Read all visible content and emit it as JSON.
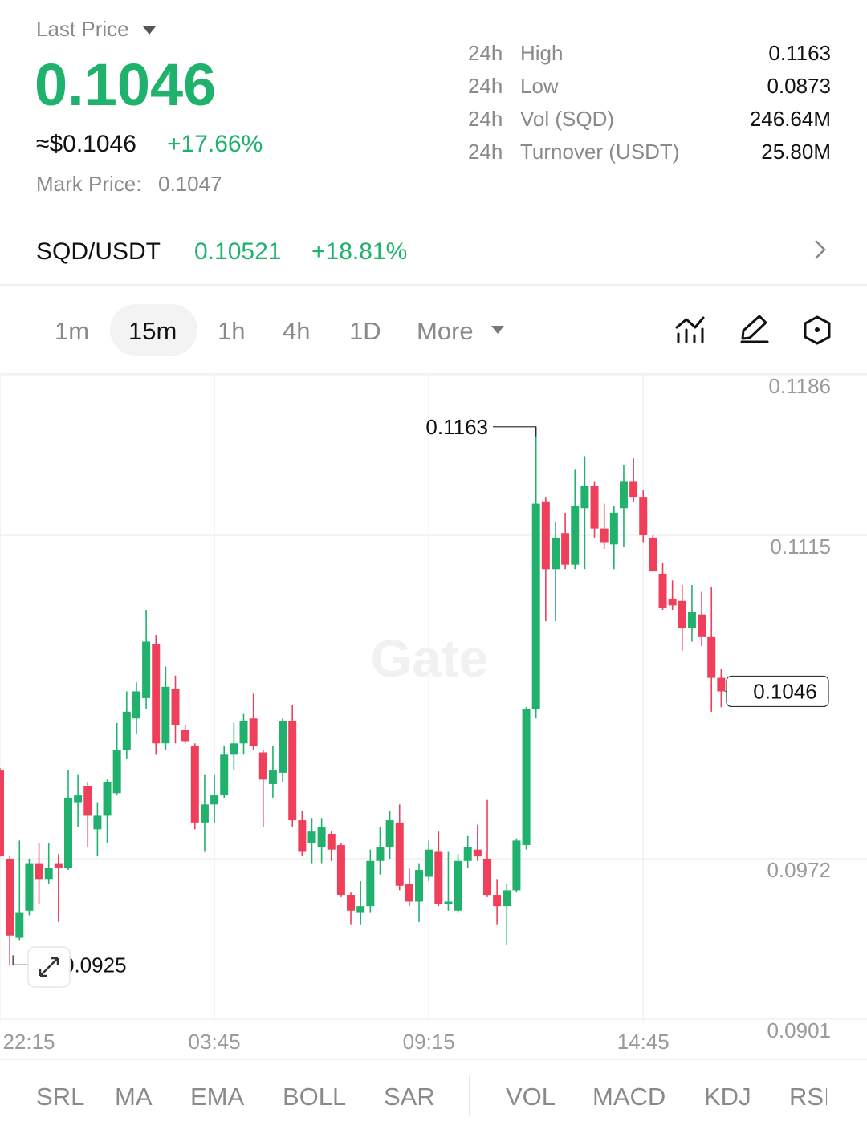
{
  "header": {
    "last_price_label": "Last Price",
    "last_price": "0.1046",
    "usd_price": "≈$0.1046",
    "change_pct": "+17.66%",
    "mark_price_label": "Mark Price:",
    "mark_price": "0.1047",
    "stats": [
      {
        "period": "24h",
        "label": "High",
        "value": "0.1163"
      },
      {
        "period": "24h",
        "label": "Low",
        "value": "0.0873"
      },
      {
        "period": "24h",
        "label": "Vol (SQD)",
        "value": "246.64M"
      },
      {
        "period": "24h",
        "label": "Turnover (USDT)",
        "value": "25.80M"
      }
    ]
  },
  "pair": {
    "symbol": "SQD/USDT",
    "price": "0.10521",
    "change_pct": "+18.81%"
  },
  "timeframes": {
    "options": [
      "1m",
      "15m",
      "1h",
      "4h",
      "1D"
    ],
    "selected": 1,
    "more": "More"
  },
  "watermark": "Gate",
  "chart_data": {
    "type": "candlestick",
    "categories": [
      "22:15",
      null,
      null,
      null,
      null,
      null,
      null,
      null,
      null,
      null,
      null,
      null,
      null,
      null,
      null,
      null,
      null,
      null,
      null,
      null,
      null,
      null,
      "03:45",
      null,
      null,
      null,
      null,
      null,
      null,
      null,
      null,
      null,
      null,
      null,
      null,
      null,
      null,
      null,
      null,
      null,
      null,
      null,
      null,
      null,
      "09:15",
      null,
      null,
      null,
      null,
      null,
      null,
      null,
      null,
      null,
      null,
      null,
      null,
      null,
      null,
      null,
      null,
      null,
      null,
      null,
      null,
      null,
      "14:45",
      null,
      null,
      null,
      null,
      null,
      null,
      null,
      null
    ],
    "open": [
      0.1011,
      0.0972,
      0.0937,
      0.0949,
      0.097,
      0.0963,
      0.097,
      0.0968,
      0.0997,
      0.1004,
      0.0985,
      0.0991,
      0.1001,
      0.102,
      0.1034,
      0.1043,
      0.1067,
      0.1023,
      0.1047,
      0.1029,
      0.1022,
      0.0988,
      0.0996,
      0.1,
      0.1018,
      0.1023,
      0.1034,
      0.1019,
      0.1005,
      0.101,
      0.1033,
      0.0989,
      0.0979,
      0.0977,
      0.0983,
      0.0978,
      0.0956,
      0.0948,
      0.0951,
      0.0971,
      0.0977,
      0.0988,
      0.0961,
      0.0953,
      0.0964,
      0.0975,
      0.0952,
      0.0949,
      0.0971,
      0.0976,
      0.0972,
      0.0956,
      0.0951,
      0.0958,
      0.0978,
      0.1038,
      0.113,
      0.11,
      0.1116,
      0.1102,
      0.1127,
      0.1137,
      0.1118,
      0.1111,
      0.1127,
      0.1139,
      0.1132,
      0.1114,
      0.1098,
      0.1087,
      0.1086,
      0.1074,
      0.108,
      0.107,
      0.1052
    ],
    "high": [
      0.1012,
      0.0973,
      0.098,
      0.0972,
      0.0979,
      0.0979,
      0.0974,
      0.1011,
      0.1009,
      0.1006,
      0.0997,
      0.1007,
      0.1032,
      0.1046,
      0.105,
      0.1082,
      0.1071,
      0.1057,
      0.1053,
      0.1031,
      0.1023,
      0.1009,
      0.1009,
      0.1022,
      0.1032,
      0.1036,
      0.1045,
      0.102,
      0.1022,
      0.1034,
      0.104,
      0.0993,
      0.099,
      0.099,
      0.0984,
      0.0979,
      0.0957,
      0.0962,
      0.0976,
      0.0986,
      0.0993,
      0.0996,
      0.0968,
      0.097,
      0.098,
      0.0984,
      0.0975,
      0.0974,
      0.0982,
      0.0987,
      0.0998,
      0.0963,
      0.0961,
      0.0981,
      0.1039,
      0.1163,
      0.1132,
      0.1121,
      0.1125,
      0.1144,
      0.115,
      0.1139,
      0.1129,
      0.1128,
      0.1146,
      0.1149,
      0.1135,
      0.1115,
      0.1103,
      0.1095,
      0.1093,
      0.1093,
      0.109,
      0.1092,
      0.1056
    ],
    "low": [
      0.0973,
      0.0925,
      0.0936,
      0.0947,
      0.0952,
      0.0961,
      0.0944,
      0.0967,
      0.0986,
      0.0977,
      0.0973,
      0.0979,
      0.1,
      0.1016,
      0.1027,
      0.1038,
      0.1018,
      0.102,
      0.1023,
      0.1023,
      0.0985,
      0.0975,
      0.0988,
      0.0999,
      0.1011,
      0.1018,
      0.102,
      0.0986,
      0.0999,
      0.1006,
      0.0986,
      0.0973,
      0.097,
      0.097,
      0.0971,
      0.0955,
      0.0943,
      0.0943,
      0.0948,
      0.0965,
      0.0972,
      0.0958,
      0.0951,
      0.0944,
      0.0962,
      0.0951,
      0.0949,
      0.0948,
      0.0968,
      0.0971,
      0.0955,
      0.0943,
      0.0934,
      0.0957,
      0.0976,
      0.1034,
      0.1077,
      0.1077,
      0.11,
      0.11,
      0.11,
      0.1114,
      0.1109,
      0.11,
      0.111,
      0.113,
      0.1112,
      0.1099,
      0.1082,
      0.1082,
      0.1064,
      0.1068,
      0.1066,
      0.1037,
      0.1039
    ],
    "close": [
      0.0973,
      0.0938,
      0.0948,
      0.097,
      0.0963,
      0.0968,
      0.0968,
      0.0999,
      0.1,
      0.0991,
      0.0991,
      0.1006,
      0.102,
      0.1037,
      0.1046,
      0.1068,
      0.1023,
      0.1048,
      0.1031,
      0.1024,
      0.0988,
      0.0996,
      0.1,
      0.1018,
      0.1023,
      0.1033,
      0.1022,
      0.1007,
      0.1011,
      0.1033,
      0.0989,
      0.0975,
      0.0984,
      0.0986,
      0.0976,
      0.0956,
      0.0949,
      0.0951,
      0.0971,
      0.0977,
      0.0989,
      0.096,
      0.0953,
      0.0967,
      0.0976,
      0.0952,
      0.0953,
      0.0971,
      0.0977,
      0.0973,
      0.0956,
      0.0951,
      0.0958,
      0.098,
      0.1038,
      0.1129,
      0.11,
      0.1114,
      0.1102,
      0.1128,
      0.1137,
      0.1118,
      0.1112,
      0.1125,
      0.1139,
      0.1132,
      0.1115,
      0.1099,
      0.1083,
      0.1084,
      0.1074,
      0.1081,
      0.107,
      0.1052,
      0.1046
    ],
    "up_color": "#20b26c",
    "down_color": "#ef3f5a",
    "ylim": [
      0.0901,
      0.1186
    ],
    "yticks": [
      0.1186,
      0.1115,
      0.0972,
      0.0901
    ],
    "grid": true,
    "high_label": 0.1163,
    "low_label": 0.0925,
    "last_label": 0.1046
  },
  "indicators": {
    "main": [
      "SRL",
      "MA",
      "EMA",
      "BOLL",
      "SAR"
    ],
    "sub": [
      "VOL",
      "MACD",
      "KDJ",
      "RSI"
    ]
  }
}
